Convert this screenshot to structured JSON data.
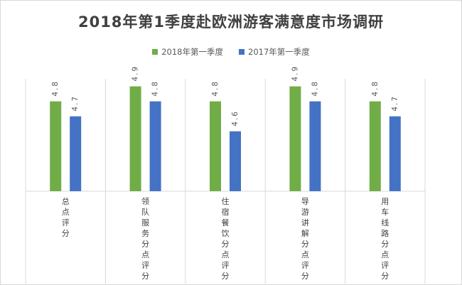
{
  "chart_data": {
    "type": "bar",
    "title": "2018年第1季度赴欧洲游客满意度市场调研",
    "categories": [
      "总点评分",
      "领队服务分点评分",
      "住宿餐饮分点评分",
      "导游讲解分点评分",
      "用车线路分点评分"
    ],
    "series": [
      {
        "name": "2018年第一季度",
        "color": "#70ad47",
        "values": [
          4.8,
          4.9,
          4.8,
          4.9,
          4.8
        ]
      },
      {
        "name": "2017年第一季度",
        "color": "#4472c4",
        "values": [
          4.7,
          4.8,
          4.6,
          4.8,
          4.7
        ]
      }
    ],
    "data_labels": [
      [
        "4.8",
        "4.9",
        "4.8",
        "4.9",
        "4.8"
      ],
      [
        "4.7",
        "4.8",
        "4.6",
        "4.8",
        "4.7"
      ]
    ],
    "legend_position": "top",
    "ylim": [
      4.2,
      4.95
    ],
    "grid": false
  }
}
